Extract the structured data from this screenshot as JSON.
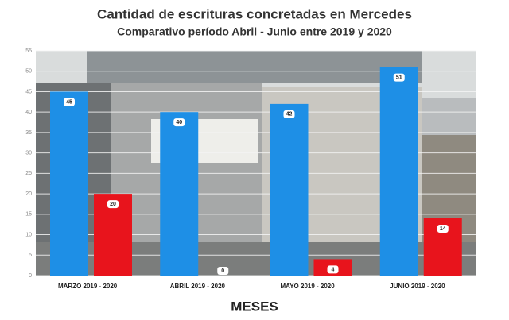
{
  "chart_data": {
    "type": "bar",
    "title": "Cantidad de escrituras concretadas en Mercedes",
    "subtitle": "Comparativo período Abril - Junio entre 2019 y 2020",
    "x_label": "MESES",
    "categories": [
      "MARZO 2019 - 2020",
      "ABRIL 2019 - 2020",
      "MAYO 2019 - 2020",
      "JUNIO 2019 - 2020"
    ],
    "series": [
      {
        "color": "#1e8fe6",
        "values": [
          45,
          40,
          42,
          51
        ]
      },
      {
        "color": "#e8141c",
        "values": [
          20,
          0,
          4,
          14
        ]
      }
    ],
    "ylim": [
      0,
      55
    ],
    "yticks": [
      0,
      5,
      10,
      15,
      20,
      25,
      30,
      35,
      40,
      45,
      50,
      55
    ],
    "grid": true
  }
}
